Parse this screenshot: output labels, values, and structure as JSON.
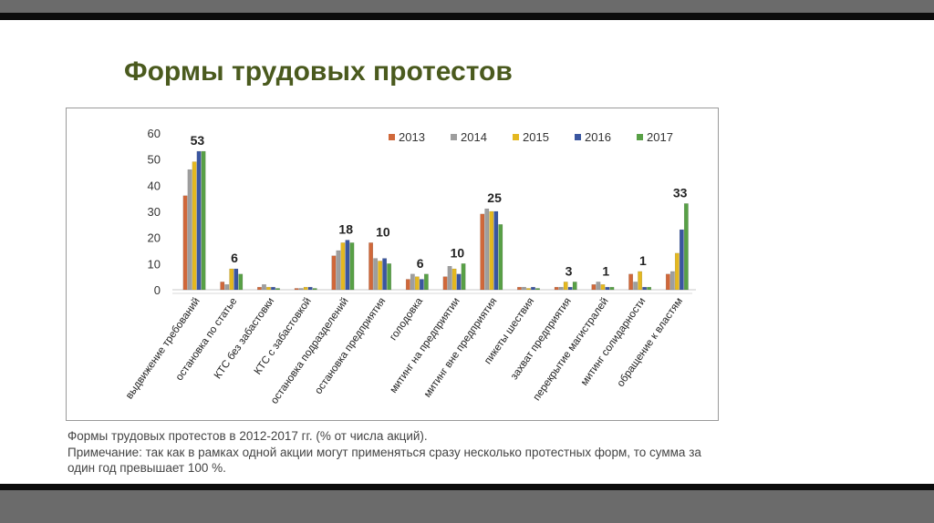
{
  "slide": {
    "title": "Формы трудовых протестов",
    "caption_line1": "Формы трудовых протестов в 2012-2017 гг. (% от числа акций).",
    "caption_line2": "Примечание: так как в рамках одной акции могут применяться сразу несколько протестных форм, то сумма за один год превышает 100 %."
  },
  "colors": {
    "frame_dark": "#0c0c0c",
    "frame_grey": "#6b6b6b",
    "title": "#4a5a1e"
  },
  "chart_data": {
    "type": "bar",
    "title": "",
    "xlabel": "",
    "ylabel": "",
    "ylim": [
      0,
      60
    ],
    "yticks": [
      0,
      10,
      20,
      30,
      40,
      50,
      60
    ],
    "legend_position": "top-right",
    "categories": [
      "выдвижение требований",
      "остановка по статье",
      "КТС без забастовки",
      "КТС с забастовкой",
      "остановка подразделений",
      "остановка предприятия",
      "голодовка",
      "митинг на предприятии",
      "митинг вне предприятия",
      "пикеты шествия",
      "захват предприятия",
      "перекрытие магистралей",
      "митинг солидарности",
      "обращение к властям"
    ],
    "series": [
      {
        "name": "2013",
        "color": "#d0683a",
        "values": [
          36,
          3,
          1,
          0,
          13,
          18,
          4,
          5,
          29,
          1,
          1,
          2,
          6,
          6
        ]
      },
      {
        "name": "2014",
        "color": "#9e9e9e",
        "values": [
          46,
          2,
          2,
          0,
          15,
          12,
          6,
          9,
          31,
          1,
          1,
          3,
          3,
          7
        ]
      },
      {
        "name": "2015",
        "color": "#e4b820",
        "values": [
          49,
          8,
          1,
          1,
          18,
          11,
          5,
          8,
          30,
          0,
          3,
          2,
          7,
          14
        ]
      },
      {
        "name": "2016",
        "color": "#3a56a0",
        "values": [
          53,
          8,
          1,
          1,
          19,
          12,
          4,
          6,
          30,
          1,
          1,
          1,
          1,
          23
        ]
      },
      {
        "name": "2017",
        "color": "#58a046",
        "values": [
          53,
          6,
          0,
          0,
          18,
          10,
          6,
          10,
          25,
          0,
          3,
          1,
          1,
          33
        ]
      }
    ],
    "data_labels": [
      "53",
      "6",
      "",
      "",
      "18",
      "10",
      "6",
      "10",
      "25",
      "",
      "3",
      "1",
      "1",
      "33"
    ]
  }
}
